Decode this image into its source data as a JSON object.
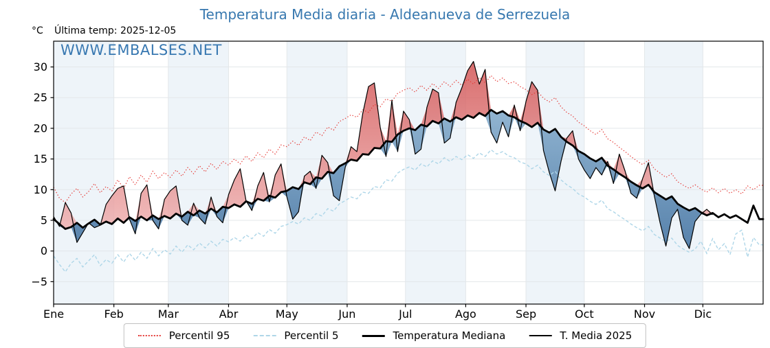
{
  "header": {
    "title": "Temperatura Media diaria - Aldeanueva de Serrezuela",
    "units_label": "°C",
    "last_temp_label": "Última temp: 2025-12-05",
    "watermark": "WWW.EMBALSES.NET"
  },
  "colors": {
    "title_blue": "#3778af",
    "watermark_blue": "#3878b1",
    "band": "#eef4f9",
    "grid": "#e3e7ea",
    "axis": "#000000",
    "p95_red": "#e53935",
    "p5_blue": "#aed6e8",
    "median_black": "#000000",
    "t2025_black": "#000000",
    "fill_above_top": "#cf4a4a",
    "fill_above_bottom": "#fbdada",
    "fill_below_top": "#a5c8e1",
    "fill_below_bottom": "#2d5f92"
  },
  "legend": {
    "items": [
      {
        "label": "Percentil 95",
        "color": "#e53935",
        "style": "dotted"
      },
      {
        "label": "Percentil 5",
        "color": "#aed6e8",
        "style": "dashed"
      },
      {
        "label": "Temperatura Mediana",
        "color": "#000000",
        "style": "thick"
      },
      {
        "label": "T. Media 2025",
        "color": "#000000",
        "style": "thin"
      }
    ]
  },
  "chart_data": {
    "type": "line",
    "title": "Temperatura Media diaria - Aldeanueva de Serrezuela",
    "xlabel": "",
    "ylabel": "°C",
    "legend_position": "bottom-center",
    "grid": true,
    "x_tick_labels": [
      "Ene",
      "Feb",
      "Mar",
      "Abr",
      "May",
      "Jun",
      "Jul",
      "Ago",
      "Sep",
      "Oct",
      "Nov",
      "Dic"
    ],
    "month_start_days": [
      0,
      31,
      59,
      90,
      120,
      151,
      181,
      212,
      243,
      273,
      304,
      334
    ],
    "days_in_year": 365,
    "ytick_values": [
      -5,
      0,
      5,
      10,
      15,
      20,
      25,
      30
    ],
    "ytick_labels": [
      "−5",
      "0",
      "5",
      "10",
      "15",
      "20",
      "25",
      "30"
    ],
    "ylim": [
      -8.65,
      34.2
    ],
    "sample_step_days": 3,
    "last_data_day": 339,
    "series": [
      {
        "name": "Percentil 95",
        "values": [
          10.4,
          8.6,
          7.9,
          9.3,
          10.2,
          8.8,
          9.7,
          11.0,
          9.5,
          10.5,
          9.8,
          11.6,
          10.2,
          12.1,
          10.8,
          12.4,
          11.2,
          13.0,
          11.8,
          12.8,
          12.0,
          13.2,
          12.2,
          13.6,
          12.6,
          13.9,
          12.9,
          14.3,
          13.3,
          14.6,
          14.0,
          15.0,
          14.2,
          15.5,
          14.6,
          16.0,
          15.2,
          16.6,
          15.8,
          17.3,
          17.0,
          17.9,
          17.2,
          18.6,
          18.0,
          19.4,
          18.8,
          20.2,
          19.7,
          21.1,
          21.6,
          22.2,
          21.8,
          23.0,
          22.6,
          23.9,
          23.5,
          24.8,
          24.4,
          25.7,
          26.2,
          26.6,
          25.9,
          27.0,
          26.2,
          27.3,
          26.5,
          27.6,
          26.8,
          27.8,
          27.0,
          28.0,
          27.2,
          28.3,
          27.4,
          28.6,
          27.6,
          28.2,
          27.3,
          27.6,
          26.8,
          26.3,
          25.5,
          26.0,
          24.9,
          24.3,
          25.0,
          23.5,
          22.6,
          22.0,
          21.0,
          20.4,
          19.6,
          19.0,
          19.8,
          18.3,
          17.7,
          16.9,
          16.2,
          15.4,
          14.7,
          14.1,
          14.8,
          13.4,
          12.7,
          12.0,
          12.6,
          11.3,
          10.7,
          10.2,
          10.8,
          10.1,
          9.6,
          10.3,
          9.5,
          10.2,
          9.4,
          10.0,
          9.3,
          10.6,
          10.0,
          10.7
        ]
      },
      {
        "name": "Percentil 5",
        "values": [
          -0.8,
          -2.2,
          -3.4,
          -2.0,
          -1.2,
          -2.6,
          -1.6,
          -0.6,
          -2.4,
          -1.4,
          -2.0,
          -0.6,
          -1.8,
          -0.4,
          -1.5,
          -0.2,
          -1.2,
          0.4,
          -0.8,
          0.2,
          -0.5,
          0.8,
          -0.2,
          1.0,
          0.2,
          1.3,
          0.5,
          1.6,
          0.8,
          1.9,
          1.5,
          2.2,
          1.6,
          2.6,
          2.0,
          3.0,
          2.4,
          3.5,
          2.9,
          4.0,
          4.3,
          4.8,
          4.4,
          5.4,
          5.0,
          6.1,
          5.7,
          6.9,
          6.5,
          7.7,
          8.2,
          8.8,
          8.5,
          9.6,
          9.4,
          10.5,
          10.3,
          11.6,
          11.4,
          12.7,
          13.3,
          13.7,
          13.2,
          14.2,
          13.7,
          14.7,
          14.2,
          15.2,
          14.6,
          15.4,
          14.9,
          15.7,
          15.1,
          16.0,
          15.4,
          16.5,
          15.8,
          16.2,
          15.5,
          15.2,
          14.5,
          14.2,
          13.4,
          14.0,
          12.9,
          12.3,
          13.0,
          11.6,
          10.8,
          10.2,
          9.3,
          8.8,
          8.1,
          7.6,
          8.3,
          6.9,
          6.4,
          5.7,
          5.1,
          4.4,
          3.8,
          3.3,
          4.0,
          2.7,
          2.1,
          1.5,
          2.1,
          0.9,
          0.3,
          -0.2,
          0.3,
          1.6,
          -0.4,
          2.0,
          0.2,
          1.2,
          -0.6,
          2.8,
          3.4,
          -1.0,
          2.2,
          1.0
        ]
      },
      {
        "name": "Temperatura Mediana",
        "values": [
          5.2,
          4.4,
          3.6,
          3.9,
          4.6,
          3.8,
          4.5,
          5.1,
          4.3,
          4.8,
          4.4,
          5.3,
          4.6,
          5.5,
          4.9,
          5.6,
          5.0,
          5.8,
          5.2,
          5.7,
          5.3,
          6.1,
          5.6,
          6.4,
          5.8,
          6.6,
          6.1,
          6.9,
          6.3,
          7.2,
          7.0,
          7.6,
          7.2,
          8.1,
          7.7,
          8.5,
          8.2,
          9.0,
          8.7,
          9.6,
          9.8,
          10.4,
          10.1,
          11.2,
          10.9,
          12.0,
          11.8,
          12.9,
          12.7,
          13.8,
          14.3,
          14.9,
          14.7,
          15.8,
          15.7,
          16.8,
          16.7,
          17.9,
          17.8,
          19.0,
          19.6,
          20.0,
          19.7,
          20.6,
          20.3,
          21.2,
          20.8,
          21.6,
          21.1,
          21.8,
          21.4,
          22.1,
          21.7,
          22.5,
          22.0,
          23.0,
          22.4,
          22.8,
          22.1,
          21.8,
          21.2,
          20.8,
          20.2,
          20.9,
          19.8,
          19.3,
          19.9,
          18.6,
          17.8,
          17.2,
          16.3,
          15.8,
          15.1,
          14.6,
          15.2,
          13.9,
          13.3,
          12.6,
          12.0,
          11.3,
          10.7,
          10.2,
          10.8,
          9.6,
          9.0,
          8.4,
          8.9,
          7.7,
          7.1,
          6.6,
          7.0,
          6.3,
          5.8,
          6.2,
          5.5,
          6.0,
          5.4,
          5.8,
          5.2,
          4.6,
          7.4,
          5.2
        ]
      },
      {
        "name": "T. Media 2025",
        "values": [
          5.6,
          4.0,
          7.9,
          6.2,
          1.4,
          3.0,
          4.6,
          3.8,
          4.2,
          7.6,
          9.0,
          10.2,
          10.6,
          5.2,
          2.8,
          9.4,
          10.8,
          5.0,
          3.6,
          8.4,
          9.8,
          10.6,
          5.0,
          4.2,
          7.8,
          5.4,
          4.4,
          8.8,
          5.6,
          4.6,
          9.2,
          11.6,
          13.4,
          8.2,
          6.6,
          10.6,
          12.8,
          8.0,
          12.4,
          14.2,
          8.8,
          5.2,
          6.4,
          12.2,
          13.0,
          10.2,
          15.6,
          14.4,
          9.0,
          8.2,
          13.6,
          17.0,
          16.2,
          22.4,
          26.8,
          27.4,
          20.2,
          15.4,
          24.6,
          16.2,
          22.8,
          21.4,
          15.8,
          16.6,
          23.4,
          26.4,
          25.8,
          17.6,
          18.4,
          24.2,
          26.6,
          29.4,
          30.9,
          27.2,
          29.6,
          19.4,
          17.6,
          21.0,
          18.6,
          23.8,
          19.6,
          24.4,
          27.6,
          26.2,
          16.4,
          12.8,
          9.8,
          14.6,
          18.4,
          19.6,
          15.0,
          13.2,
          11.8,
          13.6,
          12.4,
          14.6,
          11.0,
          15.8,
          13.0,
          9.4,
          8.6,
          11.8,
          14.4,
          9.0,
          4.6,
          0.8,
          5.4,
          6.8,
          2.2,
          0.4,
          4.8,
          6.0,
          6.8,
          5.9
        ]
      }
    ]
  }
}
